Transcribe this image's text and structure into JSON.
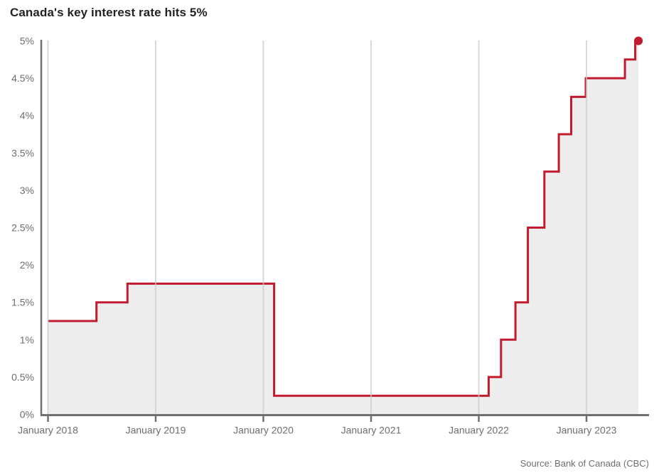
{
  "title": "Canada's key interest rate hits 5%",
  "source_note": "Source: Bank of Canada (CBC)",
  "colors": {
    "line": "#c01b2e",
    "marker": "#c01b2e",
    "area": "#ededed",
    "grid": "#c7ccd0",
    "axis": "#6f6f6f",
    "tick_label": "#6e6e6e",
    "title_text": "#232323",
    "background": "#ffffff"
  },
  "chart_data": {
    "type": "line",
    "line_style": "step-after",
    "title": "Canada's key interest rate hits 5%",
    "xlabel": "",
    "ylabel": "",
    "unit": "%",
    "ylim": [
      0,
      5
    ],
    "grid": "vertical-yearly",
    "legend_position": "none",
    "yticks": [
      {
        "value": 0,
        "label": "0%"
      },
      {
        "value": 0.5,
        "label": "0.5%"
      },
      {
        "value": 1,
        "label": "1%"
      },
      {
        "value": 1.5,
        "label": "1.5%"
      },
      {
        "value": 2,
        "label": "2%"
      },
      {
        "value": 2.5,
        "label": "2.5%"
      },
      {
        "value": 3,
        "label": "3%"
      },
      {
        "value": 3.5,
        "label": "3.5%"
      },
      {
        "value": 4,
        "label": "4%"
      },
      {
        "value": 4.5,
        "label": "4.5%"
      },
      {
        "value": 5,
        "label": "5%"
      }
    ],
    "xticks": [
      {
        "year": 2018,
        "label": "January 2018"
      },
      {
        "year": 2019,
        "label": "January 2019"
      },
      {
        "year": 2020,
        "label": "January 2020"
      },
      {
        "year": 2021,
        "label": "January 2021"
      },
      {
        "year": 2022,
        "label": "January 2022"
      },
      {
        "year": 2023,
        "label": "January 2023"
      }
    ],
    "series": [
      {
        "name": "Bank of Canada key interest rate",
        "points": [
          {
            "date": "2018-01-01",
            "value": 1.25
          },
          {
            "date": "2018-07-11",
            "value": 1.5
          },
          {
            "date": "2018-10-24",
            "value": 1.75
          },
          {
            "date": "2020-03-04",
            "value": 0.25
          },
          {
            "date": "2022-03-02",
            "value": 0.5
          },
          {
            "date": "2022-04-13",
            "value": 1.0
          },
          {
            "date": "2022-06-01",
            "value": 1.5
          },
          {
            "date": "2022-07-13",
            "value": 2.5
          },
          {
            "date": "2022-09-07",
            "value": 3.25
          },
          {
            "date": "2022-10-26",
            "value": 3.75
          },
          {
            "date": "2022-12-07",
            "value": 4.25
          },
          {
            "date": "2023-01-25",
            "value": 4.5
          },
          {
            "date": "2023-06-07",
            "value": 4.75
          },
          {
            "date": "2023-07-12",
            "value": 5.0
          }
        ]
      }
    ],
    "end_marker": {
      "date": "2023-07-12",
      "value": 5.0
    }
  }
}
